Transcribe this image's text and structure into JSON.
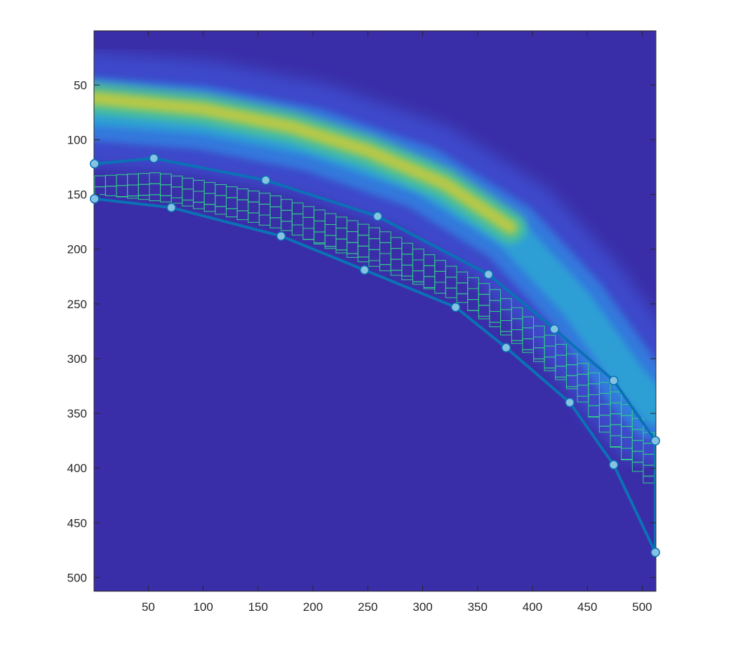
{
  "chart_data": {
    "type": "heatmap",
    "title": "",
    "xlabel": "",
    "ylabel": "",
    "xlim": [
      0.5,
      512.5
    ],
    "ylim": [
      0.5,
      512.5
    ],
    "y_direction": "reverse",
    "grid": false,
    "colormap": "parula",
    "xticks": [
      50,
      100,
      150,
      200,
      250,
      300,
      350,
      400,
      450,
      500
    ],
    "yticks": [
      50,
      100,
      150,
      200,
      250,
      300,
      350,
      400,
      450,
      500
    ],
    "xtick_labels": [
      "50",
      "100",
      "150",
      "200",
      "250",
      "300",
      "350",
      "400",
      "450",
      "500"
    ],
    "ytick_labels": [
      "50",
      "100",
      "150",
      "200",
      "250",
      "300",
      "350",
      "400",
      "450",
      "500"
    ],
    "image_bands": [
      {
        "name": "outer-band",
        "center": [
          [
            1,
            72
          ],
          [
            100,
            80
          ],
          [
            200,
            100
          ],
          [
            300,
            135
          ],
          [
            380,
            185
          ],
          [
            440,
            250
          ],
          [
            490,
            320
          ],
          [
            512,
            345
          ]
        ],
        "width": 55,
        "intensity": 0.35
      },
      {
        "name": "bright-core",
        "center": [
          [
            1,
            62
          ],
          [
            100,
            72
          ],
          [
            180,
            88
          ],
          [
            250,
            110
          ],
          [
            320,
            140
          ],
          [
            380,
            180
          ]
        ],
        "width": 20,
        "intensity": 0.75
      }
    ],
    "series": [
      {
        "name": "",
        "type": "line-markers",
        "x": [
          1,
          55,
          157,
          259,
          360,
          420,
          474,
          512
        ],
        "y": [
          122,
          117,
          137,
          170,
          223,
          273,
          320,
          375
        ]
      },
      {
        "name": "",
        "type": "line-markers",
        "x": [
          1,
          71,
          171,
          247,
          330,
          376,
          434,
          474,
          512
        ],
        "y": [
          154,
          162,
          188,
          219,
          253,
          290,
          340,
          397,
          477
        ]
      },
      {
        "name": "",
        "type": "line",
        "x": [
          512,
          512
        ],
        "y": [
          375,
          477
        ]
      }
    ],
    "grid_mesh": {
      "color": "#2fd08a",
      "inner_edge": [
        [
          1,
          133
        ],
        [
          55,
          130
        ],
        [
          157,
          150
        ],
        [
          259,
          183
        ],
        [
          360,
          236
        ],
        [
          420,
          286
        ],
        [
          474,
          333
        ],
        [
          507,
          375
        ],
        [
          507,
          420
        ]
      ],
      "outer_edge": [
        [
          1,
          150
        ],
        [
          71,
          158
        ],
        [
          171,
          183
        ],
        [
          247,
          214
        ],
        [
          330,
          248
        ],
        [
          376,
          282
        ],
        [
          434,
          330
        ],
        [
          474,
          385
        ],
        [
          507,
          420
        ]
      ],
      "cell_size": 10
    },
    "colors": {
      "line": "#0a72b5",
      "marker_fill": "#86c3e3",
      "marker_edge": "#0a72b5",
      "background": "#3a2ea8",
      "mesh": "#2fd08a"
    }
  }
}
